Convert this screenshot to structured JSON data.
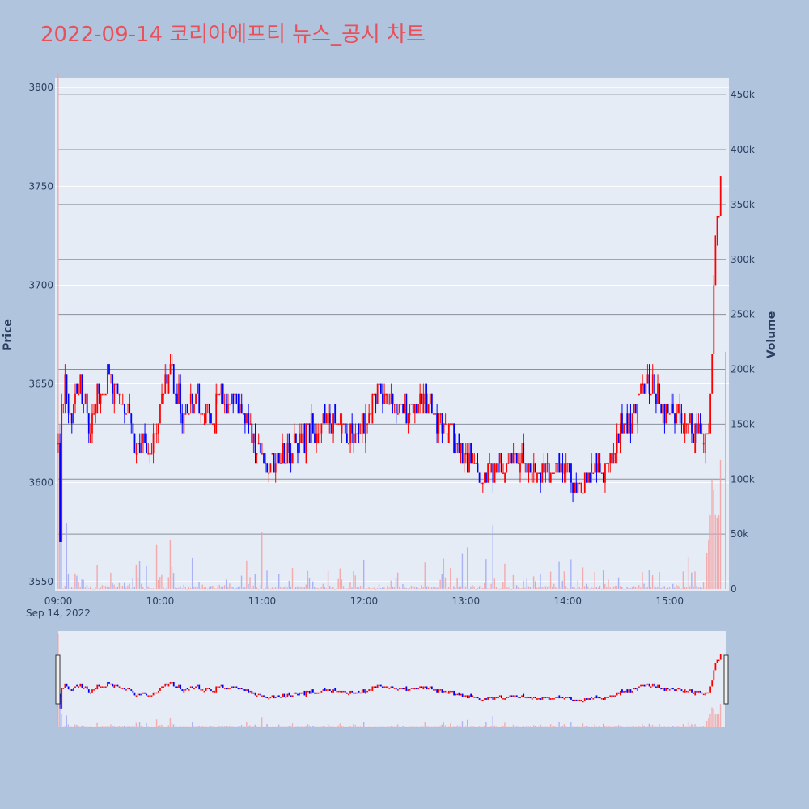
{
  "title": "2022-09-14 코리아에프티 뉴스_공시 차트",
  "colors": {
    "up": "#ff0000",
    "down": "#0000ff",
    "vol_up": "#f4a0a0",
    "vol_down": "#a0a8f4",
    "bg": "#b0c4de",
    "plot": "#e5ecf6"
  },
  "chart_data": {
    "type": "candlestick",
    "yaxis": {
      "title": "Price",
      "range": [
        3545,
        3805
      ],
      "ticks": [
        3550,
        3600,
        3650,
        3700,
        3750,
        3800
      ]
    },
    "y2axis": {
      "title": "Volume",
      "range": [
        0,
        470000
      ],
      "ticks": [
        0,
        50000,
        100000,
        150000,
        200000,
        250000,
        300000,
        350000,
        400000,
        450000
      ],
      "tick_labels": [
        "0",
        "50k",
        "100k",
        "150k",
        "200k",
        "250k",
        "300k",
        "350k",
        "400k",
        "450k"
      ]
    },
    "xaxis": {
      "ticks": [
        "09:00",
        "10:00",
        "11:00",
        "12:00",
        "13:00",
        "14:00",
        "15:00"
      ],
      "date_label": "Sep 14, 2022",
      "range_minutes": [
        0,
        393
      ]
    },
    "price_keypoints": [
      [
        0,
        3620
      ],
      [
        1,
        3570
      ],
      [
        2,
        3640
      ],
      [
        4,
        3655
      ],
      [
        6,
        3635
      ],
      [
        9,
        3640
      ],
      [
        12,
        3650
      ],
      [
        15,
        3645
      ],
      [
        18,
        3625
      ],
      [
        21,
        3640
      ],
      [
        24,
        3650
      ],
      [
        27,
        3645
      ],
      [
        30,
        3655
      ],
      [
        33,
        3645
      ],
      [
        36,
        3650
      ],
      [
        39,
        3640
      ],
      [
        42,
        3630
      ],
      [
        45,
        3615
      ],
      [
        48,
        3620
      ],
      [
        51,
        3625
      ],
      [
        54,
        3615
      ],
      [
        57,
        3625
      ],
      [
        60,
        3640
      ],
      [
        63,
        3650
      ],
      [
        66,
        3655
      ],
      [
        69,
        3645
      ],
      [
        72,
        3640
      ],
      [
        75,
        3635
      ],
      [
        78,
        3640
      ],
      [
        81,
        3645
      ],
      [
        84,
        3640
      ],
      [
        87,
        3635
      ],
      [
        90,
        3630
      ],
      [
        93,
        3640
      ],
      [
        96,
        3645
      ],
      [
        99,
        3640
      ],
      [
        102,
        3645
      ],
      [
        105,
        3640
      ],
      [
        108,
        3635
      ],
      [
        111,
        3630
      ],
      [
        114,
        3625
      ],
      [
        117,
        3615
      ],
      [
        120,
        3612
      ],
      [
        123,
        3610
      ],
      [
        126,
        3608
      ],
      [
        130,
        3615
      ],
      [
        135,
        3615
      ],
      [
        140,
        3618
      ],
      [
        145,
        3622
      ],
      [
        150,
        3628
      ],
      [
        155,
        3630
      ],
      [
        160,
        3632
      ],
      [
        165,
        3628
      ],
      [
        170,
        3625
      ],
      [
        175,
        3630
      ],
      [
        180,
        3630
      ],
      [
        185,
        3642
      ],
      [
        190,
        3645
      ],
      [
        195,
        3642
      ],
      [
        200,
        3638
      ],
      [
        205,
        3635
      ],
      [
        210,
        3640
      ],
      [
        215,
        3645
      ],
      [
        220,
        3635
      ],
      [
        225,
        3628
      ],
      [
        230,
        3625
      ],
      [
        235,
        3620
      ],
      [
        240,
        3612
      ],
      [
        245,
        3608
      ],
      [
        250,
        3600
      ],
      [
        255,
        3605
      ],
      [
        260,
        3608
      ],
      [
        265,
        3612
      ],
      [
        270,
        3615
      ],
      [
        275,
        3615
      ],
      [
        280,
        3608
      ],
      [
        285,
        3605
      ],
      [
        290,
        3605
      ],
      [
        295,
        3605
      ],
      [
        300,
        3603
      ],
      [
        305,
        3600
      ],
      [
        310,
        3603
      ],
      [
        315,
        3605
      ],
      [
        320,
        3602
      ],
      [
        325,
        3610
      ],
      [
        330,
        3620
      ],
      [
        335,
        3630
      ],
      [
        340,
        3638
      ],
      [
        345,
        3645
      ],
      [
        350,
        3648
      ],
      [
        355,
        3640
      ],
      [
        360,
        3632
      ],
      [
        365,
        3635
      ],
      [
        370,
        3630
      ],
      [
        375,
        3628
      ],
      [
        380,
        3625
      ],
      [
        382,
        3618
      ],
      [
        383,
        3625
      ],
      [
        384,
        3640
      ],
      [
        385,
        3660
      ],
      [
        386,
        3700
      ],
      [
        387,
        3718
      ],
      [
        388,
        3730
      ],
      [
        389,
        3735
      ],
      [
        390,
        3760
      ]
    ],
    "volume_spikes": [
      [
        0,
        470000
      ],
      [
        1,
        150000
      ],
      [
        2,
        68000
      ],
      [
        5,
        60000
      ],
      [
        58,
        40000
      ],
      [
        66,
        45000
      ],
      [
        120,
        52000
      ],
      [
        200,
        15000
      ],
      [
        238,
        32000
      ],
      [
        241,
        38000
      ],
      [
        256,
        58000
      ],
      [
        263,
        23000
      ],
      [
        298,
        16000
      ],
      [
        368,
        16000
      ],
      [
        373,
        15000
      ],
      [
        375,
        16000
      ],
      [
        382,
        33000
      ],
      [
        383,
        44000
      ],
      [
        384,
        67000
      ],
      [
        385,
        100000
      ],
      [
        386,
        90000
      ],
      [
        387,
        68000
      ],
      [
        388,
        65000
      ],
      [
        389,
        67000
      ],
      [
        390,
        118000
      ],
      [
        393,
        216000
      ]
    ],
    "rangeslider": {
      "visible": true
    }
  }
}
